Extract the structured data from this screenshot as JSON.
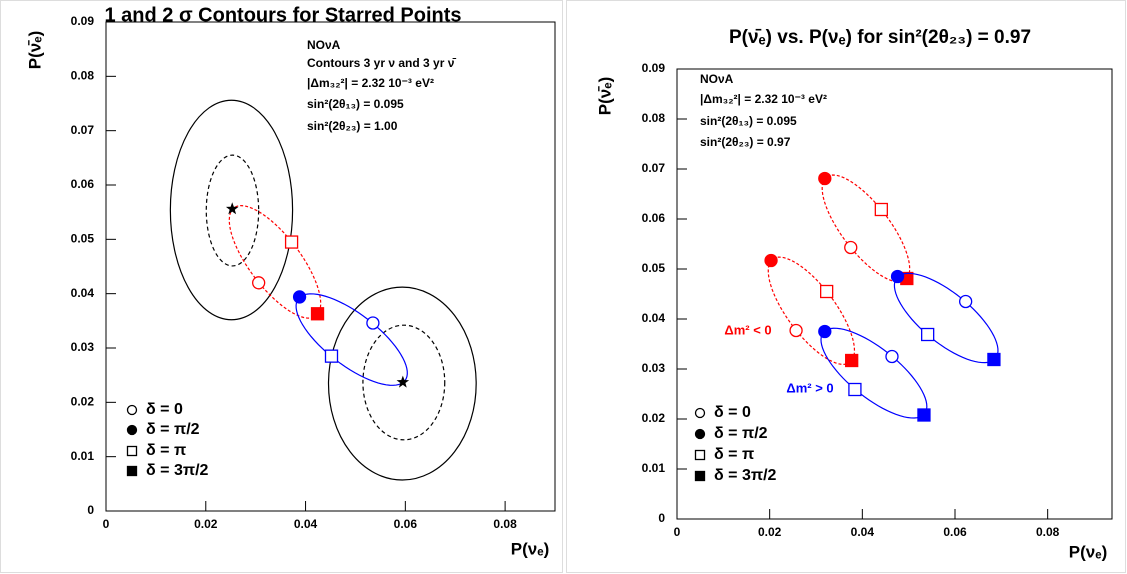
{
  "chart_data": [
    {
      "type": "scatter",
      "title": "1 and 2 σ Contours for Starred Points",
      "x_label": "P(νₑ)",
      "y_label": "P(ν̄ₑ)",
      "xlim": [
        0,
        0.09
      ],
      "ylim": [
        0,
        0.09
      ],
      "xticks": [
        0,
        0.02,
        0.04,
        0.06,
        0.08
      ],
      "yticks": [
        0,
        0.01,
        0.02,
        0.03,
        0.04,
        0.05,
        0.06,
        0.07,
        0.08,
        0.09
      ],
      "grid": false,
      "annotation_lines": [
        "NOνA",
        "Contours 3 yr ν and 3 yr ν̄",
        "|Δm₃₂²| = 2.32 10⁻³ eV²",
        "sin²(2θ₁₃) = 0.095",
        "sin²(2θ₂₃) = 1.00"
      ],
      "legend": [
        {
          "label": "δ = 0",
          "marker": "open-circle"
        },
        {
          "label": "δ = π/2",
          "marker": "filled-circle"
        },
        {
          "label": "δ = π",
          "marker": "open-square"
        },
        {
          "label": "δ = 3π/2",
          "marker": "filled-square"
        }
      ],
      "legend_corner": "lower-left",
      "contours": [
        {
          "x_range": [
            0.0129,
            0.0374
          ],
          "y_range": [
            0.0352,
            0.0756
          ],
          "style": "solid"
        },
        {
          "x_range": [
            0.0201,
            0.0306
          ],
          "y_range": [
            0.0451,
            0.0655
          ],
          "style": "dashed"
        },
        {
          "x_range": [
            0.0446,
            0.0742
          ],
          "y_range": [
            0.0057,
            0.0412
          ],
          "style": "solid"
        },
        {
          "x_range": [
            0.0515,
            0.0679
          ],
          "y_range": [
            0.0131,
            0.0342
          ],
          "style": "dashed"
        }
      ],
      "series": [
        {
          "color": "#ff0000",
          "line_style": "dashed",
          "x": [
            0.0306,
            0.0253,
            0.0372,
            0.0424
          ],
          "y": [
            0.042,
            0.0556,
            0.0495,
            0.0363
          ],
          "markers": [
            "open-circle",
            "star",
            "open-square",
            "filled-square"
          ]
        },
        {
          "color": "#0000ff",
          "line_style": "solid",
          "x": [
            0.0535,
            0.0388,
            0.0452,
            0.0595
          ],
          "y": [
            0.0346,
            0.0394,
            0.0285,
            0.0237
          ],
          "markers": [
            "open-circle",
            "filled-circle",
            "open-square",
            "star"
          ]
        }
      ]
    },
    {
      "type": "scatter",
      "title": "P(ν̄ₑ) vs. P(νₑ) for sin²(2θ₂₃) = 0.97",
      "x_label": "P(νₑ)",
      "y_label": "P(ν̄ₑ)",
      "xlim": [
        0,
        0.09
      ],
      "ylim": [
        0,
        0.09
      ],
      "xticks": [
        0,
        0.02,
        0.04,
        0.06,
        0.08
      ],
      "yticks": [
        0,
        0.01,
        0.02,
        0.03,
        0.04,
        0.05,
        0.06,
        0.07,
        0.08,
        0.09
      ],
      "grid": false,
      "annotation_lines": [
        "NOνA",
        "|Δm₃₂²| = 2.32 10⁻³ eV²",
        "sin²(2θ₁₃) = 0.095",
        "sin²(2θ₂₃) = 0.97"
      ],
      "legend": [
        {
          "label": "δ = 0",
          "marker": "open-circle"
        },
        {
          "label": "δ = π/2",
          "marker": "filled-circle"
        },
        {
          "label": "δ = π",
          "marker": "open-square"
        },
        {
          "label": "δ = 3π/2",
          "marker": "filled-square"
        }
      ],
      "legend_corner": "lower-left",
      "labels": [
        {
          "text": "Δm² < 0",
          "color": "#ff0000"
        },
        {
          "text": "Δm² > 0",
          "color": "#0000ff"
        }
      ],
      "series": [
        {
          "color": "#ff0000",
          "line_style": "dashed",
          "x": [
            0.0375,
            0.0319,
            0.0441,
            0.0496
          ],
          "y": [
            0.0543,
            0.0681,
            0.0619,
            0.0481
          ],
          "markers": [
            "open-circle",
            "filled-circle",
            "open-square",
            "filled-square"
          ]
        },
        {
          "color": "#0000ff",
          "line_style": "solid",
          "x": [
            0.0623,
            0.0476,
            0.0541,
            0.0684
          ],
          "y": [
            0.0435,
            0.0485,
            0.0369,
            0.0319
          ],
          "markers": [
            "open-circle",
            "filled-circle",
            "open-square",
            "filled-square"
          ]
        },
        {
          "color": "#ff0000",
          "line_style": "dashed",
          "x": [
            0.0257,
            0.0203,
            0.0323,
            0.0377
          ],
          "y": [
            0.0377,
            0.0517,
            0.0455,
            0.0317
          ],
          "markers": [
            "open-circle",
            "filled-circle",
            "open-square",
            "filled-square"
          ]
        },
        {
          "color": "#0000ff",
          "line_style": "solid",
          "x": [
            0.0464,
            0.0319,
            0.0384,
            0.0533
          ],
          "y": [
            0.0325,
            0.0375,
            0.0259,
            0.0208
          ],
          "markers": [
            "open-circle",
            "filled-circle",
            "open-square",
            "filled-square"
          ]
        }
      ]
    }
  ]
}
